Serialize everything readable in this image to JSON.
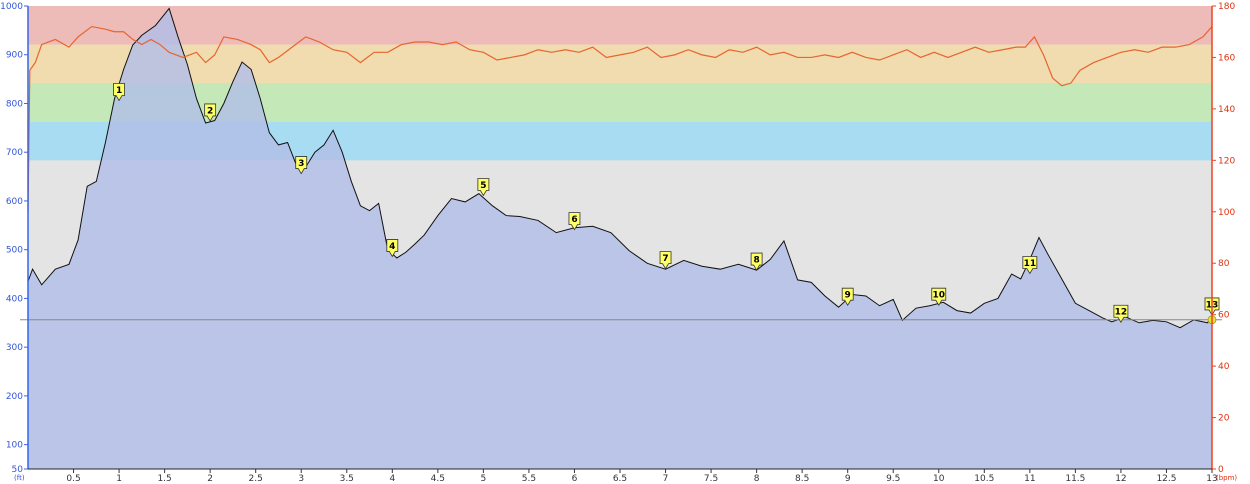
{
  "chart_data": {
    "type": "area",
    "x_unit": "",
    "y_left_unit": "(ft)",
    "y_right_unit": "(bpm)",
    "x_ticks": [
      0.5,
      1,
      1.5,
      2,
      2.5,
      3,
      3.5,
      4,
      4.5,
      5,
      5.5,
      6,
      6.5,
      7,
      7.5,
      8,
      8.5,
      9,
      9.5,
      10,
      10.5,
      11,
      11.5,
      12,
      12.5,
      13
    ],
    "x_range": [
      0,
      13
    ],
    "y_left_ticks": [
      50,
      100,
      200,
      300,
      400,
      500,
      600,
      700,
      800,
      900,
      1000
    ],
    "y_left_range": [
      50,
      1000
    ],
    "y_right_ticks": [
      0,
      20,
      40,
      60,
      80,
      100,
      120,
      140,
      160,
      180
    ],
    "y_right_range": [
      0,
      180
    ],
    "hr_zones": [
      {
        "from": 120,
        "to": 135,
        "color": "#a8dcf2"
      },
      {
        "from": 135,
        "to": 150,
        "color": "#c4e8b8"
      },
      {
        "from": 150,
        "to": 165,
        "color": "#f0dcae"
      },
      {
        "from": 165,
        "to": 180,
        "color": "#eebcb8"
      }
    ],
    "reference_line_bpm": 58,
    "elevation_series": {
      "name": "",
      "color": "#b2bee8",
      "points": [
        [
          0,
          435
        ],
        [
          0.05,
          460
        ],
        [
          0.15,
          428
        ],
        [
          0.3,
          460
        ],
        [
          0.45,
          470
        ],
        [
          0.55,
          520
        ],
        [
          0.65,
          630
        ],
        [
          0.75,
          640
        ],
        [
          0.85,
          720
        ],
        [
          0.95,
          810
        ],
        [
          1.05,
          870
        ],
        [
          1.15,
          920
        ],
        [
          1.25,
          940
        ],
        [
          1.4,
          960
        ],
        [
          1.55,
          995
        ],
        [
          1.65,
          935
        ],
        [
          1.75,
          880
        ],
        [
          1.85,
          810
        ],
        [
          1.95,
          760
        ],
        [
          2.05,
          765
        ],
        [
          2.15,
          800
        ],
        [
          2.25,
          845
        ],
        [
          2.35,
          885
        ],
        [
          2.45,
          870
        ],
        [
          2.55,
          810
        ],
        [
          2.65,
          740
        ],
        [
          2.75,
          715
        ],
        [
          2.85,
          720
        ],
        [
          2.95,
          672
        ],
        [
          3.05,
          670
        ],
        [
          3.15,
          700
        ],
        [
          3.25,
          715
        ],
        [
          3.35,
          745
        ],
        [
          3.45,
          700
        ],
        [
          3.55,
          640
        ],
        [
          3.65,
          590
        ],
        [
          3.75,
          580
        ],
        [
          3.85,
          595
        ],
        [
          3.95,
          500
        ],
        [
          4.05,
          483
        ],
        [
          4.15,
          495
        ],
        [
          4.25,
          512
        ],
        [
          4.35,
          530
        ],
        [
          4.5,
          570
        ],
        [
          4.65,
          605
        ],
        [
          4.8,
          598
        ],
        [
          4.95,
          615
        ],
        [
          5.1,
          590
        ],
        [
          5.25,
          570
        ],
        [
          5.4,
          568
        ],
        [
          5.6,
          560
        ],
        [
          5.8,
          535
        ],
        [
          6.0,
          545
        ],
        [
          6.2,
          548
        ],
        [
          6.4,
          535
        ],
        [
          6.6,
          498
        ],
        [
          6.8,
          472
        ],
        [
          7.0,
          460
        ],
        [
          7.2,
          478
        ],
        [
          7.4,
          466
        ],
        [
          7.6,
          460
        ],
        [
          7.8,
          470
        ],
        [
          8.0,
          458
        ],
        [
          8.15,
          480
        ],
        [
          8.3,
          518
        ],
        [
          8.45,
          438
        ],
        [
          8.6,
          433
        ],
        [
          8.75,
          405
        ],
        [
          8.9,
          382
        ],
        [
          9.05,
          408
        ],
        [
          9.2,
          405
        ],
        [
          9.35,
          385
        ],
        [
          9.5,
          398
        ],
        [
          9.6,
          355
        ],
        [
          9.75,
          380
        ],
        [
          9.9,
          385
        ],
        [
          10.05,
          392
        ],
        [
          10.2,
          375
        ],
        [
          10.35,
          370
        ],
        [
          10.5,
          390
        ],
        [
          10.65,
          400
        ],
        [
          10.8,
          450
        ],
        [
          10.9,
          440
        ],
        [
          11.0,
          480
        ],
        [
          11.1,
          525
        ],
        [
          11.2,
          490
        ],
        [
          11.35,
          440
        ],
        [
          11.5,
          390
        ],
        [
          11.65,
          375
        ],
        [
          11.8,
          360
        ],
        [
          11.9,
          352
        ],
        [
          12.05,
          362
        ],
        [
          12.2,
          350
        ],
        [
          12.35,
          355
        ],
        [
          12.5,
          352
        ],
        [
          12.65,
          340
        ],
        [
          12.8,
          356
        ],
        [
          12.95,
          350
        ],
        [
          13.0,
          363
        ]
      ]
    },
    "heart_rate_series": {
      "name": "",
      "color": "#e86430",
      "points": [
        [
          0,
          100
        ],
        [
          0.02,
          155
        ],
        [
          0.08,
          158
        ],
        [
          0.15,
          165
        ],
        [
          0.3,
          167
        ],
        [
          0.45,
          164
        ],
        [
          0.55,
          168
        ],
        [
          0.7,
          172
        ],
        [
          0.85,
          171
        ],
        [
          0.95,
          170
        ],
        [
          1.05,
          170
        ],
        [
          1.15,
          167
        ],
        [
          1.25,
          165
        ],
        [
          1.35,
          167
        ],
        [
          1.45,
          165
        ],
        [
          1.55,
          162
        ],
        [
          1.7,
          160
        ],
        [
          1.85,
          162
        ],
        [
          1.95,
          158
        ],
        [
          2.05,
          161
        ],
        [
          2.15,
          168
        ],
        [
          2.3,
          167
        ],
        [
          2.45,
          165
        ],
        [
          2.55,
          163
        ],
        [
          2.65,
          158
        ],
        [
          2.75,
          160
        ],
        [
          2.9,
          164
        ],
        [
          3.05,
          168
        ],
        [
          3.2,
          166
        ],
        [
          3.35,
          163
        ],
        [
          3.5,
          162
        ],
        [
          3.65,
          158
        ],
        [
          3.8,
          162
        ],
        [
          3.95,
          162
        ],
        [
          4.1,
          165
        ],
        [
          4.25,
          166
        ],
        [
          4.4,
          166
        ],
        [
          4.55,
          165
        ],
        [
          4.7,
          166
        ],
        [
          4.85,
          163
        ],
        [
          5.0,
          162
        ],
        [
          5.15,
          159
        ],
        [
          5.3,
          160
        ],
        [
          5.45,
          161
        ],
        [
          5.6,
          163
        ],
        [
          5.75,
          162
        ],
        [
          5.9,
          163
        ],
        [
          6.05,
          162
        ],
        [
          6.2,
          164
        ],
        [
          6.35,
          160
        ],
        [
          6.5,
          161
        ],
        [
          6.65,
          162
        ],
        [
          6.8,
          164
        ],
        [
          6.95,
          160
        ],
        [
          7.1,
          161
        ],
        [
          7.25,
          163
        ],
        [
          7.4,
          161
        ],
        [
          7.55,
          160
        ],
        [
          7.7,
          163
        ],
        [
          7.85,
          162
        ],
        [
          8.0,
          164
        ],
        [
          8.15,
          161
        ],
        [
          8.3,
          162
        ],
        [
          8.45,
          160
        ],
        [
          8.6,
          160
        ],
        [
          8.75,
          161
        ],
        [
          8.9,
          160
        ],
        [
          9.05,
          162
        ],
        [
          9.2,
          160
        ],
        [
          9.35,
          159
        ],
        [
          9.5,
          161
        ],
        [
          9.65,
          163
        ],
        [
          9.8,
          160
        ],
        [
          9.95,
          162
        ],
        [
          10.1,
          160
        ],
        [
          10.25,
          162
        ],
        [
          10.4,
          164
        ],
        [
          10.55,
          162
        ],
        [
          10.7,
          163
        ],
        [
          10.85,
          164
        ],
        [
          10.95,
          164
        ],
        [
          11.05,
          168
        ],
        [
          11.15,
          161
        ],
        [
          11.25,
          152
        ],
        [
          11.35,
          149
        ],
        [
          11.45,
          150
        ],
        [
          11.55,
          155
        ],
        [
          11.7,
          158
        ],
        [
          11.85,
          160
        ],
        [
          12.0,
          162
        ],
        [
          12.15,
          163
        ],
        [
          12.3,
          162
        ],
        [
          12.45,
          164
        ],
        [
          12.6,
          164
        ],
        [
          12.75,
          165
        ],
        [
          12.9,
          168
        ],
        [
          13.0,
          172
        ]
      ]
    },
    "markers": [
      {
        "label": "1",
        "x": 1.0,
        "y": 800
      },
      {
        "label": "2",
        "x": 2.0,
        "y": 758
      },
      {
        "label": "3",
        "x": 3.0,
        "y": 650
      },
      {
        "label": "4",
        "x": 4.0,
        "y": 480
      },
      {
        "label": "5",
        "x": 5.0,
        "y": 605
      },
      {
        "label": "6",
        "x": 6.0,
        "y": 535
      },
      {
        "label": "7",
        "x": 7.0,
        "y": 455
      },
      {
        "label": "8",
        "x": 8.0,
        "y": 452
      },
      {
        "label": "9",
        "x": 9.0,
        "y": 380
      },
      {
        "label": "10",
        "x": 10.0,
        "y": 380
      },
      {
        "label": "11",
        "x": 11.0,
        "y": 445
      },
      {
        "label": "12",
        "x": 12.0,
        "y": 345
      },
      {
        "label": "13",
        "x": 13.0,
        "y": 360
      }
    ]
  }
}
